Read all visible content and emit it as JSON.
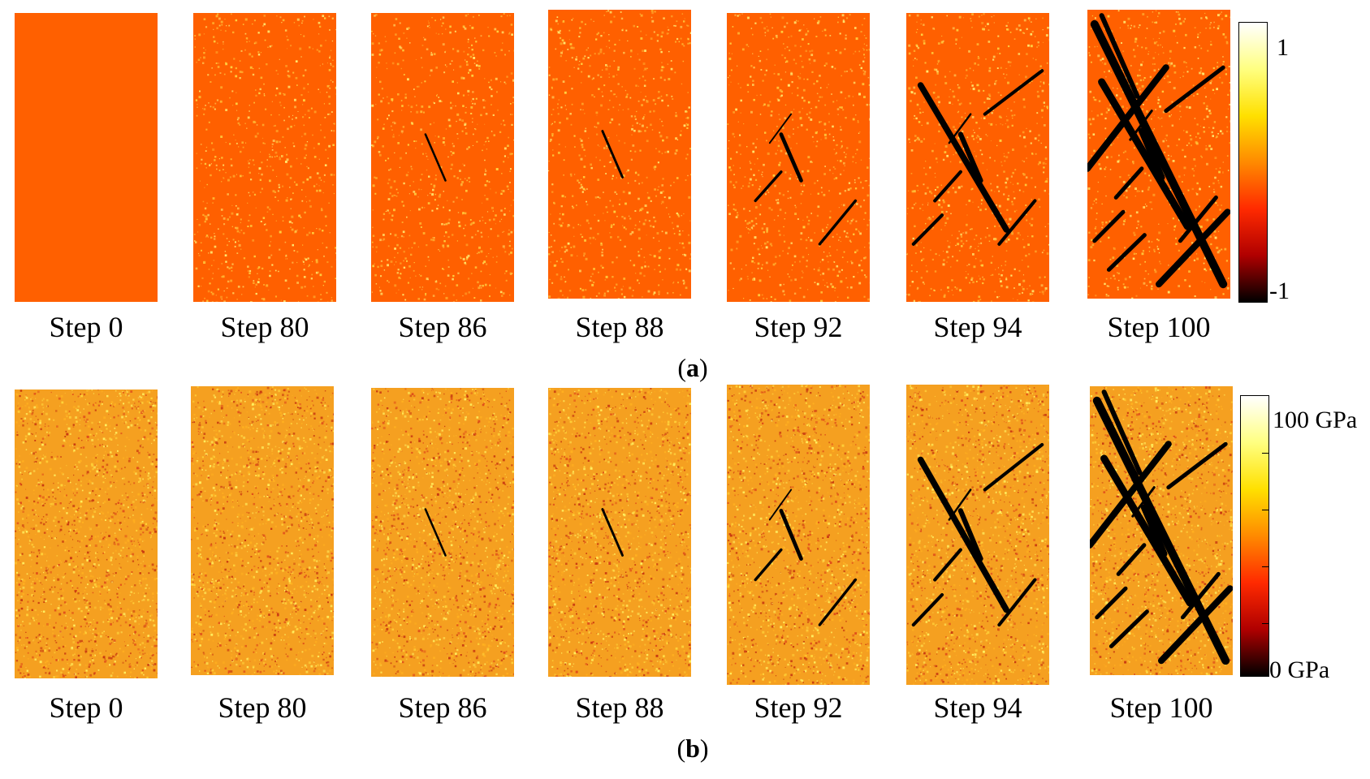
{
  "panels": {
    "a": {
      "tag_open": "(",
      "tag_letter": "a",
      "tag_close": ")",
      "steps": [
        "Step 0",
        "Step 80",
        "Step 86",
        "Step 88",
        "Step 92",
        "Step 94",
        "Step 100"
      ],
      "colorbar": {
        "max_label": "1",
        "min_label": "-1",
        "gradient": [
          "#000000",
          "#b00000",
          "#ff2a00",
          "#ff8a00",
          "#ffe000",
          "#ffff80",
          "#ffffff"
        ]
      },
      "base_color": "#ff6000"
    },
    "b": {
      "tag_open": "(",
      "tag_letter": "b",
      "tag_close": ")",
      "steps": [
        "Step 0",
        "Step 80",
        "Step 86",
        "Step 88",
        "Step 92",
        "Step 94",
        "Step 100"
      ],
      "colorbar": {
        "max_label": "100 GPa",
        "min_label": "0 GPa",
        "gradient": [
          "#000000",
          "#b00000",
          "#ff2a00",
          "#ff8a00",
          "#ffe000",
          "#ffff80",
          "#ffffff"
        ]
      },
      "base_color": "#f5a020"
    }
  }
}
